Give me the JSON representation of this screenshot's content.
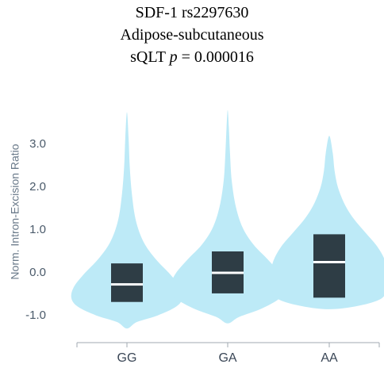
{
  "chart_data": {
    "type": "violin",
    "title_lines": [
      "SDF-1 rs2297630",
      "Adipose-subcutaneous"
    ],
    "stat_prefix": "sQLT ",
    "stat_symbol": "p",
    "stat_suffix": " = 0.000016",
    "ylabel": "Norm. Intron-Excision Ratio",
    "xlabel": "",
    "categories": [
      "GG",
      "GA",
      "AA"
    ],
    "ylim": [
      -1.3,
      3.8
    ],
    "yticks": [
      3.0,
      2.0,
      1.0,
      0.0,
      -1.0
    ],
    "ytick_labels": [
      "3.0",
      "2.0",
      "1.0",
      "0.0",
      "-1.0"
    ],
    "violins": [
      {
        "category": "GG",
        "min": -1.3,
        "max": 3.75,
        "median": -0.27,
        "q1": -0.68,
        "q3": 0.22
      },
      {
        "category": "GA",
        "min": -1.18,
        "max": 3.8,
        "median": 0.0,
        "q1": -0.48,
        "q3": 0.5
      },
      {
        "category": "AA",
        "min": -0.85,
        "max": 3.2,
        "median": 0.25,
        "q1": -0.58,
        "q3": 0.9
      }
    ],
    "colors": {
      "violin": "#bdeaf7",
      "box": "#2e3d45",
      "median": "#ffffff",
      "axis": "#a0a8b0"
    },
    "grid": false,
    "legend": "none"
  }
}
